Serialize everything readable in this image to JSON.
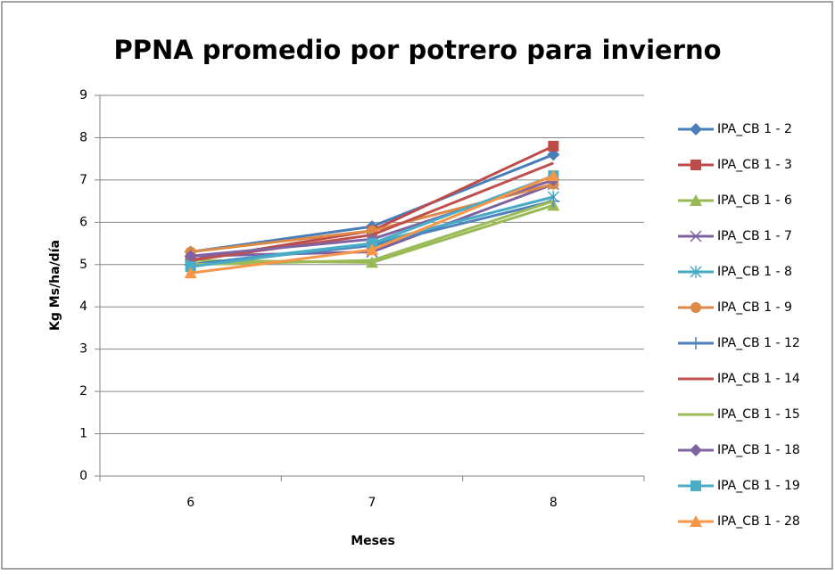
{
  "chart_data": {
    "type": "line",
    "title": "PPNA promedio por potrero para invierno",
    "x_label": "Meses",
    "y_label": "Kg Ms/ha/día",
    "categories": [
      "6",
      "7",
      "8"
    ],
    "ylim": [
      0,
      9
    ],
    "yticks": [
      0,
      1,
      2,
      3,
      4,
      5,
      6,
      7,
      8,
      9
    ],
    "grid": true,
    "legend": "right",
    "series": [
      {
        "name": "IPA_CB 1 - 2",
        "color": "#4a7ebb",
        "marker": "diamond",
        "values": [
          5.3,
          5.9,
          7.6
        ]
      },
      {
        "name": "IPA_CB 1 - 3",
        "color": "#be4b48",
        "marker": "square",
        "values": [
          5.1,
          5.8,
          7.8
        ]
      },
      {
        "name": "IPA_CB 1 - 6",
        "color": "#98b954",
        "marker": "triangle",
        "values": [
          5.1,
          5.05,
          6.4
        ]
      },
      {
        "name": "IPA_CB 1 - 7",
        "color": "#7d60a0",
        "marker": "x",
        "values": [
          5.2,
          5.3,
          6.9
        ]
      },
      {
        "name": "IPA_CB 1 - 8",
        "color": "#46aac5",
        "marker": "star",
        "values": [
          5.0,
          5.5,
          6.6
        ]
      },
      {
        "name": "IPA_CB 1 - 9",
        "color": "#dc8a45",
        "marker": "circle",
        "values": [
          5.3,
          5.8,
          6.9
        ]
      },
      {
        "name": "IPA_CB 1 - 12",
        "color": "#4f81bd",
        "marker": "plus",
        "values": [
          5.0,
          5.45,
          6.5
        ]
      },
      {
        "name": "IPA_CB 1 - 14",
        "color": "#c0504d",
        "marker": "none",
        "values": [
          5.1,
          5.7,
          7.4
        ]
      },
      {
        "name": "IPA_CB 1 - 15",
        "color": "#9bbb59",
        "marker": "none",
        "values": [
          5.0,
          5.1,
          6.5
        ]
      },
      {
        "name": "IPA_CB 1 - 18",
        "color": "#8064a2",
        "marker": "diamond",
        "values": [
          5.2,
          5.6,
          7.0
        ]
      },
      {
        "name": "IPA_CB 1 - 19",
        "color": "#4bacc6",
        "marker": "square",
        "values": [
          4.95,
          5.5,
          7.1
        ]
      },
      {
        "name": "IPA_CB 1 - 28",
        "color": "#f79646",
        "marker": "triangle",
        "values": [
          4.8,
          5.35,
          7.1
        ]
      }
    ]
  }
}
